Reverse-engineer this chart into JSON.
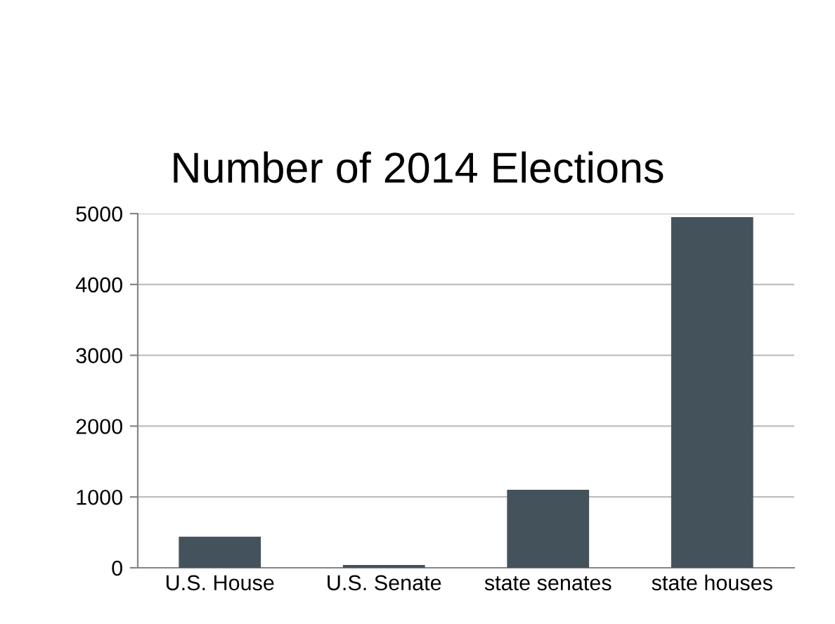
{
  "chart_data": {
    "type": "bar",
    "title": "Number of 2014 Elections",
    "categories": [
      "U.S. House",
      "U.S. Senate",
      "state senates",
      "state houses"
    ],
    "values": [
      440,
      40,
      1100,
      4950
    ],
    "color": "#44525c",
    "ylim": [
      0,
      5000
    ],
    "yticks": [
      0,
      1000,
      2000,
      3000,
      4000,
      5000
    ],
    "grid": "y",
    "legend": false
  }
}
